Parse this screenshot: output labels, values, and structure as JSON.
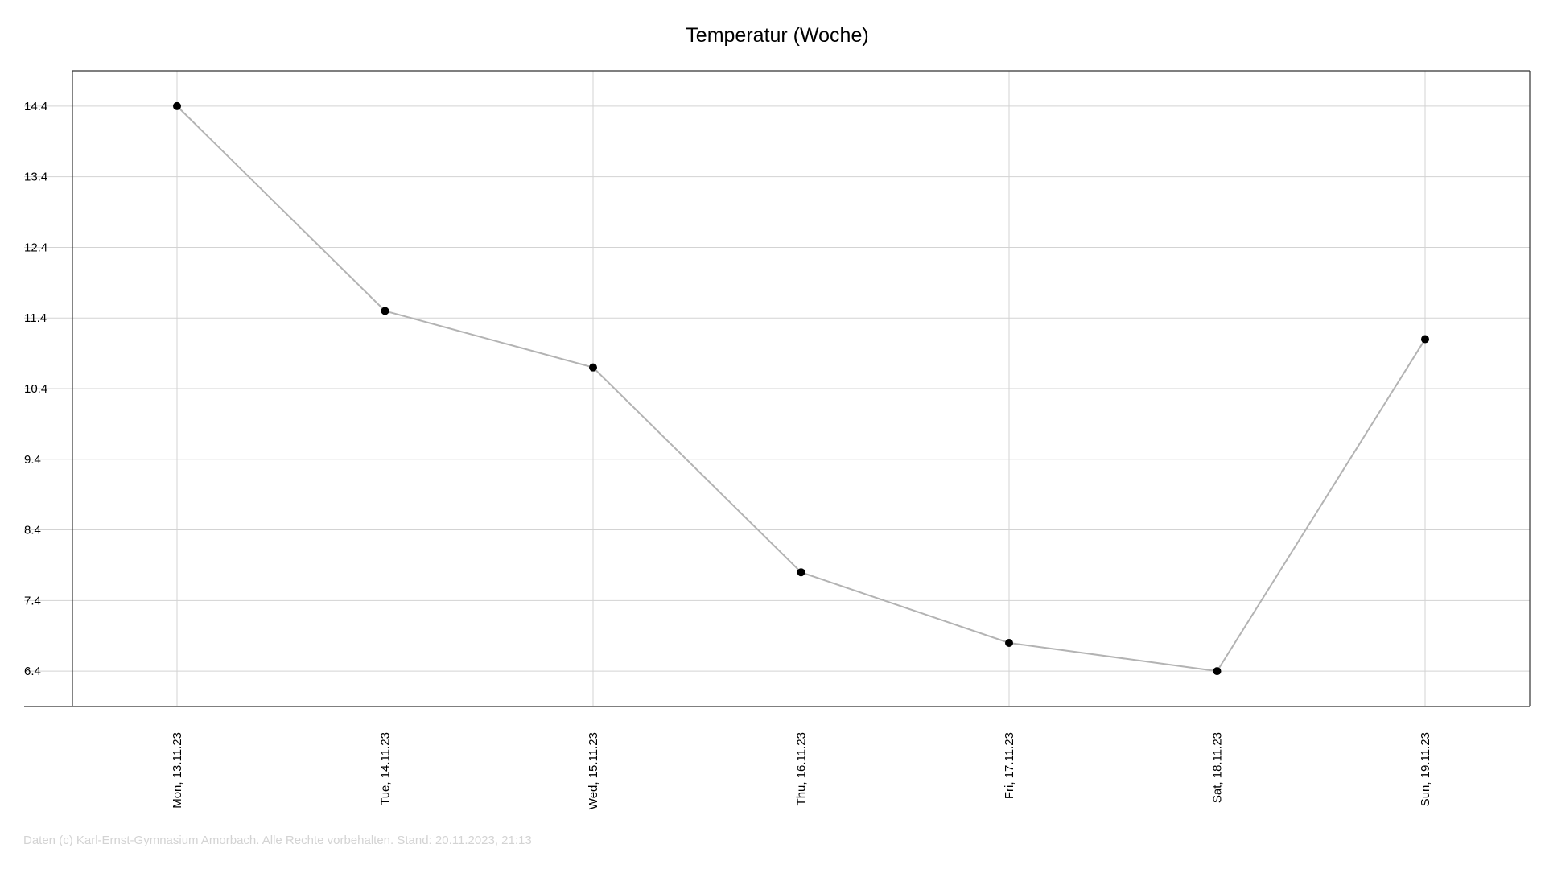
{
  "chart_data": {
    "type": "line",
    "title": "Temperatur (Woche)",
    "xlabel": "",
    "ylabel": "",
    "categories": [
      "Mon, 13.11.23",
      "Tue, 14.11.23",
      "Wed, 15.11.23",
      "Thu, 16.11.23",
      "Fri, 17.11.23",
      "Sat, 18.11.23",
      "Sun, 19.11.23"
    ],
    "series": [
      {
        "values": [
          14.4,
          11.5,
          10.7,
          7.8,
          6.8,
          6.4,
          11.1
        ]
      }
    ],
    "yticks": [
      6.4,
      7.4,
      8.4,
      9.4,
      10.4,
      11.4,
      12.4,
      13.4,
      14.4
    ],
    "ytick_labels": [
      "6.4",
      "7.4",
      "8.4",
      "9.4",
      "10.4",
      "11.4",
      "12.4",
      "13.4",
      "14.4"
    ],
    "ylim": [
      5.9,
      14.9
    ],
    "grid": true,
    "line_color": "#b3b3b3",
    "marker_color": "#000000",
    "grid_color": "#d3d3d3"
  },
  "footer": "Daten (c) Karl-Ernst-Gymnasium Amorbach. Alle Rechte vorbehalten. Stand: 20.11.2023, 21:13"
}
